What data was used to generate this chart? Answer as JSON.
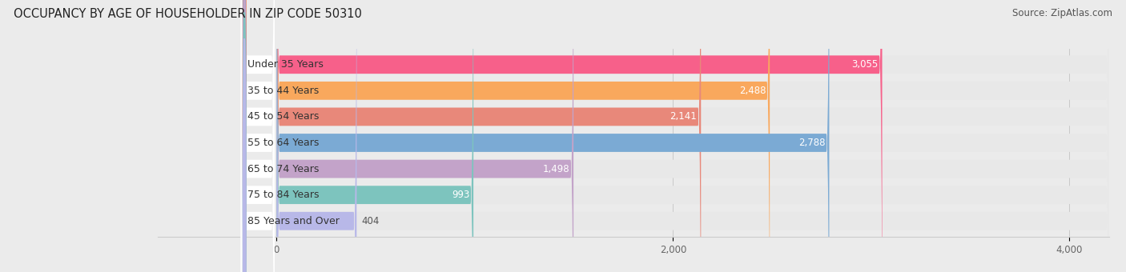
{
  "title": "OCCUPANCY BY AGE OF HOUSEHOLDER IN ZIP CODE 50310",
  "source": "Source: ZipAtlas.com",
  "categories": [
    "Under 35 Years",
    "35 to 44 Years",
    "45 to 54 Years",
    "55 to 64 Years",
    "65 to 74 Years",
    "75 to 84 Years",
    "85 Years and Over"
  ],
  "values": [
    3055,
    2488,
    2141,
    2788,
    1498,
    993,
    404
  ],
  "bar_colors": [
    "#F7608A",
    "#F9A85D",
    "#E8887A",
    "#7BAAD4",
    "#C3A3C9",
    "#7DC4BE",
    "#B8B8E8"
  ],
  "bar_bg_colors": [
    "#F0EAEC",
    "#F0EAEC",
    "#F0EAEC",
    "#F0EAEC",
    "#F0EAEC",
    "#F0EAEC",
    "#F0EAEC"
  ],
  "label_pill_color": "#FFFFFF",
  "xlim_max": 4200,
  "xticks": [
    0,
    2000,
    4000
  ],
  "title_fontsize": 10.5,
  "source_fontsize": 8.5,
  "label_fontsize": 9,
  "value_fontsize": 8.5,
  "bar_height": 0.7,
  "background_color": "#EBEBEB"
}
